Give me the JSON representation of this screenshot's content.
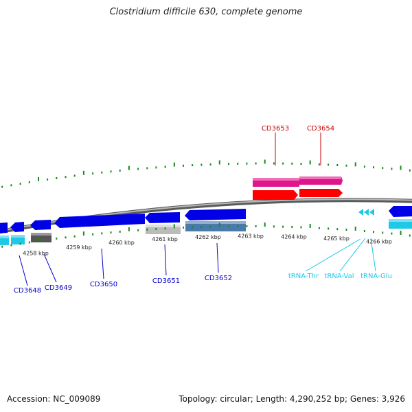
{
  "title": "Clostridium difficile 630, complete genome",
  "footer": {
    "accession": "Accession: NC_009089",
    "summary": "Topology: circular; Length: 4,290,252 bp; Genes: 3,926"
  },
  "axis_labels": [
    "4258 kbp",
    "4259 kbp",
    "4260 kbp",
    "4261 kbp",
    "4262 kbp",
    "4263 kbp",
    "4264 kbp",
    "4265 kbp",
    "4266 kbp"
  ],
  "gene_labels": {
    "forward": [
      "CD3653",
      "CD3654"
    ],
    "reverse": [
      "CD3648",
      "CD3649",
      "CD3650",
      "CD3651",
      "CD3652"
    ],
    "trna": [
      "tRNA-Thr",
      "tRNA-Val",
      "tRNA-Glu"
    ]
  },
  "colors": {
    "forward_cds": "#e0148c",
    "forward_gene": "#ff0000",
    "reverse_gene": "#0000e6",
    "trna": "#1ec8e6",
    "pseudo": "#666666",
    "backbone": "#808080",
    "ticks": "#1a8a1a"
  }
}
